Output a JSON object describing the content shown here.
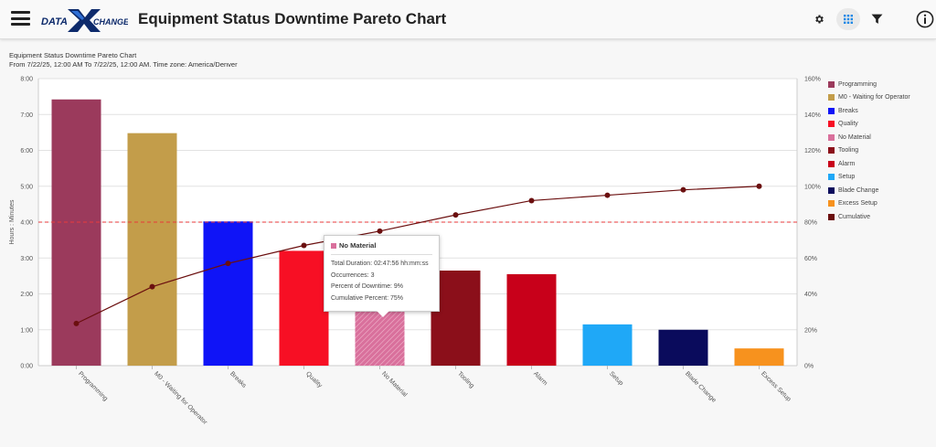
{
  "app": {
    "title": "Equipment Status Downtime Pareto Chart",
    "logo_text_left": "DATA",
    "logo_text_right": "CHANGE"
  },
  "toolbar": {
    "settings_icon": "gear-icon",
    "grid_icon": "grid-icon",
    "filter_icon": "filter-icon",
    "info_icon": "info-icon"
  },
  "header": {
    "chart_title": "Equipment Status Downtime Pareto Chart",
    "date_range": "From 7/22/25, 12:00 AM To 7/22/25, 12:00 AM. Time zone: America/Denver"
  },
  "tooltip": {
    "title": "No Material",
    "total_duration": "Total Duration: 02:47:56 hh:mm:ss",
    "occurrences": "Occurrences: 3",
    "percent_downtime": "Percent of Downtime: 9%",
    "cumulative_percent": "Cumulative Percent: 75%",
    "color": "#d9709c"
  },
  "chart_data": {
    "type": "bar",
    "ylabel": "Hours : Minutes",
    "y_ticks": [
      "0:00",
      "1:00",
      "2:00",
      "3:00",
      "4:00",
      "5:00",
      "6:00",
      "7:00",
      "8:00"
    ],
    "y2_ticks": [
      "0%",
      "20%",
      "40%",
      "60%",
      "80%",
      "100%",
      "120%",
      "140%",
      "160%"
    ],
    "ylim": [
      0,
      8
    ],
    "y2lim": [
      0,
      160
    ],
    "threshold_percent": 80,
    "categories": [
      "Programming",
      "M0 - Waiting for Operator",
      "Breaks",
      "Quality",
      "No Material",
      "Tooling",
      "Alarm",
      "Setup",
      "Blade Change",
      "Excess Setup"
    ],
    "values_hours": [
      7.42,
      6.48,
      4.02,
      3.2,
      2.8,
      2.65,
      2.55,
      1.15,
      1.0,
      0.48
    ],
    "cumulative_percent": [
      23.5,
      44,
      57,
      67,
      75,
      84,
      92,
      95,
      98,
      100
    ],
    "colors": [
      "#9b3a5c",
      "#c39d4a",
      "#0f14f7",
      "#f70f24",
      "#d9709c",
      "#8b0f1a",
      "#c8001a",
      "#1fa8f7",
      "#0a0b5c",
      "#f7921e"
    ],
    "cumulative_color": "#6b0f0f",
    "threshold_color": "#e8393b",
    "legend": [
      "Programming",
      "M0 - Waiting for Operator",
      "Breaks",
      "Quality",
      "No Material",
      "Tooling",
      "Alarm",
      "Setup",
      "Blade Change",
      "Excess Setup",
      "Cumulative"
    ],
    "legend_colors": [
      "#9b3a5c",
      "#c39d4a",
      "#0f14f7",
      "#f70f24",
      "#d9709c",
      "#8b0f1a",
      "#c8001a",
      "#1fa8f7",
      "#0a0b5c",
      "#f7921e",
      "#6b0f0f"
    ],
    "legend_position": "right",
    "grid": true
  }
}
